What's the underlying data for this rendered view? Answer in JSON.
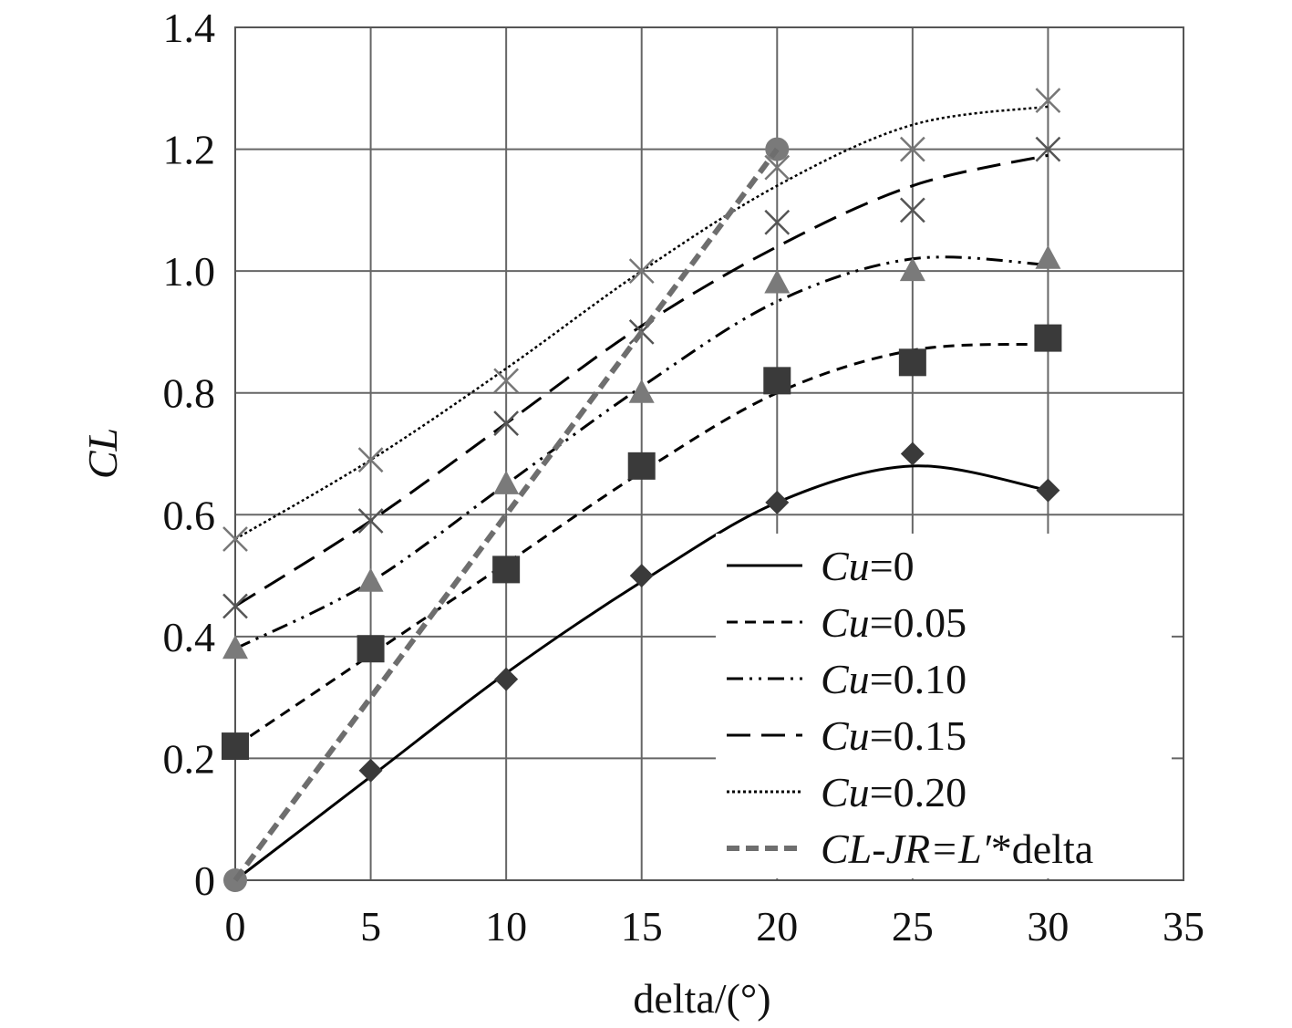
{
  "chart_data": {
    "type": "line",
    "xlabel": "delta/(°)",
    "ylabel": "CL",
    "xlim": [
      0,
      35
    ],
    "ylim": [
      0,
      1.4
    ],
    "x_ticks": [
      "0",
      "5",
      "10",
      "15",
      "20",
      "25",
      "30",
      "35"
    ],
    "y_ticks": [
      "0",
      "0.2",
      "0.4",
      "0.6",
      "0.8",
      "1.0",
      "1.2",
      "1.4"
    ],
    "grid": true,
    "legend_position": "bottom-right",
    "x": [
      0,
      5,
      10,
      15,
      20,
      25,
      30
    ],
    "series": [
      {
        "name": "Cu=0",
        "name_italic": "Cu",
        "name_rest": "=0",
        "marker": "diamond",
        "line_style": "solid",
        "color": "#000000",
        "marker_color": "#3a3a3a",
        "values": [
          0,
          0.18,
          0.33,
          0.5,
          0.62,
          0.7,
          0.64
        ],
        "fit": [
          0,
          0.17,
          0.34,
          0.49,
          0.62,
          0.68,
          0.64
        ]
      },
      {
        "name": "Cu=0.05",
        "name_italic": "Cu",
        "name_rest": "=0.05",
        "marker": "square",
        "line_style": "short-dash",
        "color": "#000000",
        "marker_color": "#3a3a3a",
        "values": [
          0.22,
          0.38,
          0.51,
          0.68,
          0.82,
          0.85,
          0.89
        ],
        "fit": [
          0.22,
          0.37,
          0.52,
          0.67,
          0.8,
          0.87,
          0.88
        ]
      },
      {
        "name": "Cu=0.10",
        "name_italic": "Cu",
        "name_rest": "=0.10",
        "marker": "triangle",
        "line_style": "dash-dot-dot",
        "color": "#000000",
        "marker_color": "#7a7a7a",
        "values": [
          0.38,
          0.49,
          0.65,
          0.8,
          0.98,
          1.0,
          1.02
        ],
        "fit": [
          0.38,
          0.49,
          0.65,
          0.81,
          0.95,
          1.02,
          1.01
        ]
      },
      {
        "name": "Cu=0.15",
        "name_italic": "Cu",
        "name_rest": "=0.15",
        "marker": "x",
        "line_style": "long-dash",
        "color": "#000000",
        "marker_color": "#555555",
        "values": [
          0.45,
          0.59,
          0.75,
          0.9,
          1.08,
          1.1,
          1.2
        ],
        "fit": [
          0.45,
          0.59,
          0.75,
          0.91,
          1.04,
          1.14,
          1.19
        ]
      },
      {
        "name": "Cu=0.20",
        "name_italic": "Cu",
        "name_rest": "=0.20",
        "marker": "x",
        "line_style": "dotted",
        "color": "#000000",
        "marker_color": "#777777",
        "values": [
          0.56,
          0.69,
          0.82,
          1.0,
          1.17,
          1.2,
          1.28
        ],
        "fit": [
          0.56,
          0.69,
          0.84,
          1.0,
          1.14,
          1.24,
          1.27
        ]
      },
      {
        "name": "CL-JR=L′*delta",
        "name_italic": "CL-JR=L′",
        "name_rest": "*delta",
        "marker": "circle",
        "line_style": "thick-dash",
        "color": "#6e6e6e",
        "marker_color": "#7a7a7a",
        "x": [
          0,
          20
        ],
        "values": [
          0,
          1.2
        ]
      }
    ]
  }
}
